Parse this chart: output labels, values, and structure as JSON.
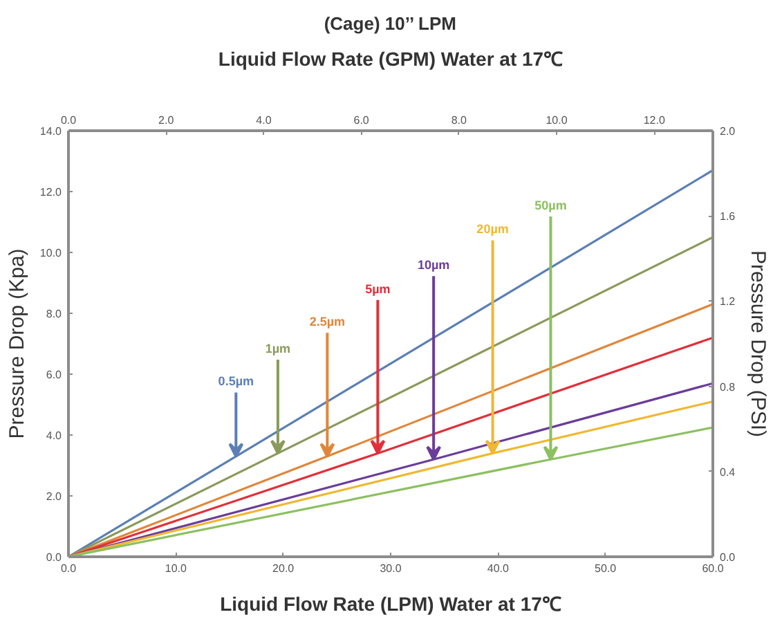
{
  "chart_data": {
    "type": "line",
    "title": "(Cage) 10’’ LPM",
    "x2label": "Liquid Flow Rate (GPM) Water at 17℃",
    "xlabel": "Liquid Flow Rate (LPM) Water at 17℃",
    "ylabel": "Pressure Drop (Kpa)",
    "y2label": "Pressure Drop (PSI)",
    "xlim": [
      0,
      60
    ],
    "xticks": [
      {
        "value": 0,
        "label": "0.0"
      },
      {
        "value": 10,
        "label": "10.0"
      },
      {
        "value": 20,
        "label": "20.0"
      },
      {
        "value": 30,
        "label": "30.0"
      },
      {
        "value": 40,
        "label": "40.0"
      },
      {
        "value": 50,
        "label": "50.0"
      },
      {
        "value": 60,
        "label": "60.0"
      }
    ],
    "ylim": [
      0,
      14
    ],
    "yticks": [
      {
        "value": 0,
        "label": "0.0"
      },
      {
        "value": 2,
        "label": "2.0"
      },
      {
        "value": 4,
        "label": "4.0"
      },
      {
        "value": 6,
        "label": "6.0"
      },
      {
        "value": 8,
        "label": "8.0"
      },
      {
        "value": 10,
        "label": "10.0"
      },
      {
        "value": 12,
        "label": "12.0"
      },
      {
        "value": 14,
        "label": "14.0"
      }
    ],
    "y2lim": [
      0,
      2
    ],
    "y2ticks": [
      {
        "value": 0,
        "label": "0.0"
      },
      {
        "value": 0.4,
        "label": "0.4"
      },
      {
        "value": 0.8,
        "label": "0.8"
      },
      {
        "value": 1.2,
        "label": "1.2"
      },
      {
        "value": 1.6,
        "label": "1.6"
      },
      {
        "value": 2,
        "label": "2.0"
      }
    ],
    "x2lim": [
      0,
      13.2
    ],
    "x2ticks": [
      {
        "value": 0,
        "label": "0.0"
      },
      {
        "value": 2,
        "label": "2.0"
      },
      {
        "value": 4,
        "label": "4.0"
      },
      {
        "value": 6,
        "label": "6.0"
      },
      {
        "value": 8,
        "label": "8.0"
      },
      {
        "value": 10,
        "label": "10.0"
      },
      {
        "value": 12,
        "label": "12.0"
      }
    ],
    "grid": false,
    "marker": "none",
    "line_style": "solid",
    "series": [
      {
        "name": "0.5µm",
        "color": "#5b7fb5",
        "x": [
          0,
          15.6,
          60
        ],
        "values": [
          0,
          3.3,
          12.7
        ]
      },
      {
        "name": "1µm",
        "color": "#8a9a5b",
        "x": [
          0,
          19.5,
          60
        ],
        "values": [
          0,
          3.4,
          10.5
        ]
      },
      {
        "name": "2.5µm",
        "color": "#e0863a",
        "x": [
          0,
          24.1,
          60
        ],
        "values": [
          0,
          3.3,
          8.3
        ]
      },
      {
        "name": "5µm",
        "color": "#e0303a",
        "x": [
          0,
          28.8,
          60
        ],
        "values": [
          0,
          3.4,
          7.2
        ]
      },
      {
        "name": "10µm",
        "color": "#6a3d9a",
        "x": [
          0,
          34,
          60
        ],
        "values": [
          0,
          3.2,
          5.7
        ]
      },
      {
        "name": "20µm",
        "color": "#f0b830",
        "x": [
          0,
          39.5,
          60
        ],
        "values": [
          0,
          3.4,
          5.1
        ]
      },
      {
        "name": "50µm",
        "color": "#8cc060",
        "x": [
          0,
          44.9,
          60
        ],
        "values": [
          0,
          3.2,
          4.25
        ]
      }
    ]
  }
}
